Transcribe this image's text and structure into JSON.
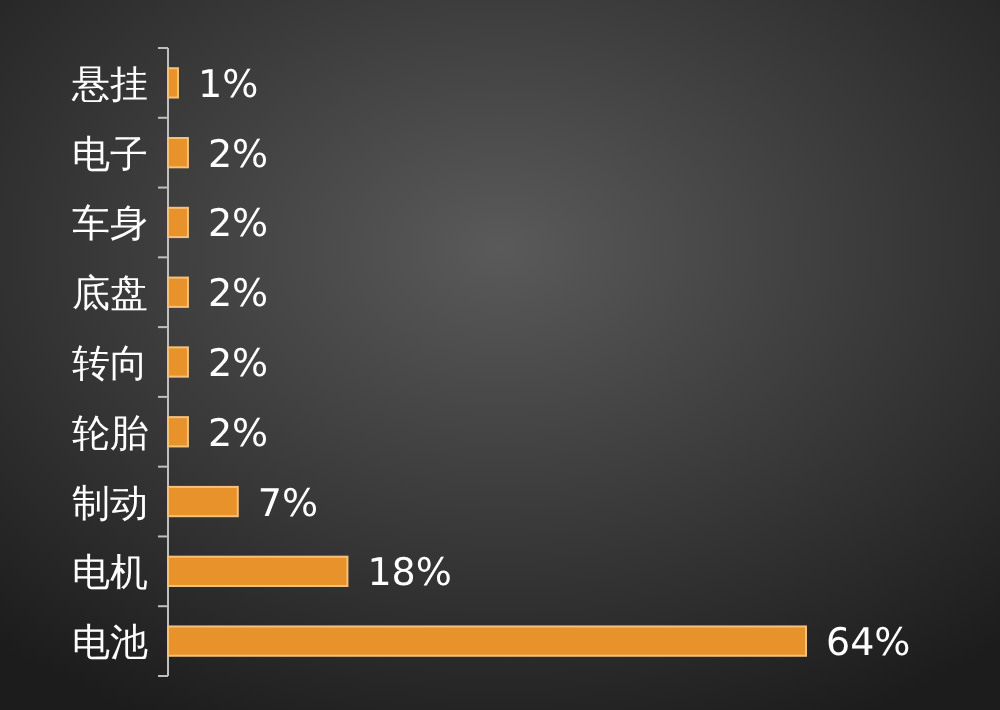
{
  "chart_data": {
    "type": "bar",
    "orientation": "horizontal",
    "color": "#e8922c",
    "categories": [
      "悬挂",
      "电子",
      "车身",
      "底盘",
      "转向",
      "轮胎",
      "制动",
      "电机",
      "电池"
    ],
    "values": [
      1,
      2,
      2,
      2,
      2,
      2,
      7,
      18,
      64
    ],
    "value_labels": [
      "1%",
      "2%",
      "2%",
      "2%",
      "2%",
      "2%",
      "7%",
      "18%",
      "64%"
    ]
  }
}
